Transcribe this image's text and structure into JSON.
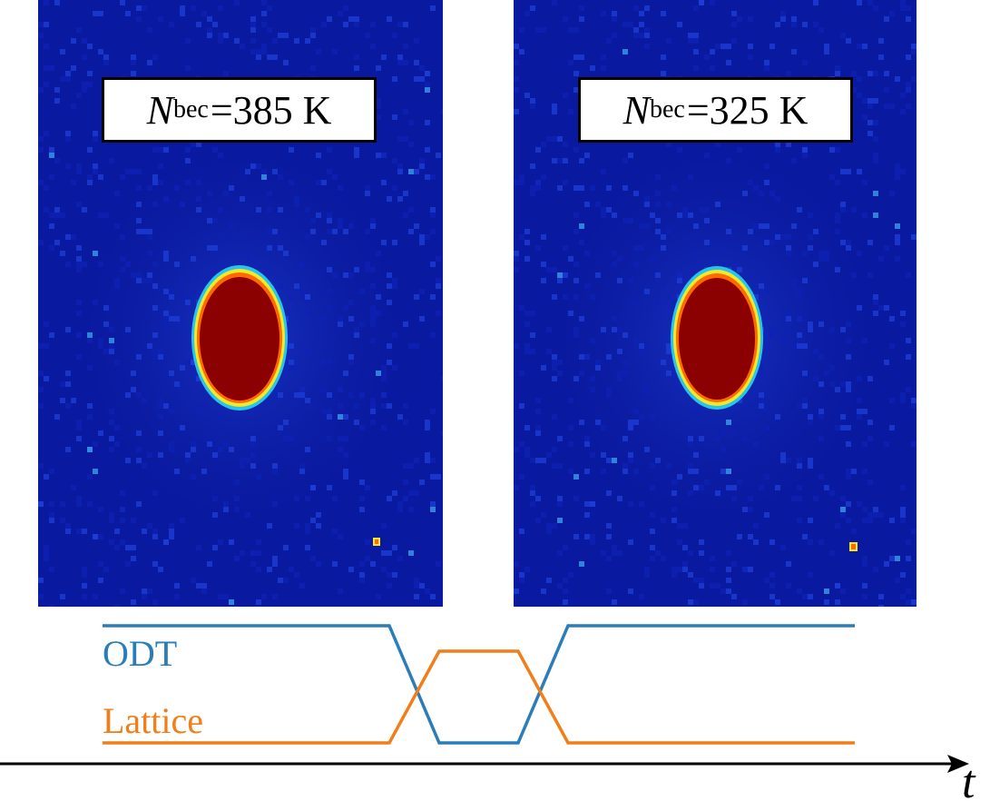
{
  "panels": [
    {
      "id": "left",
      "label_symbol": "N",
      "label_subscript": "bec",
      "label_value": "=385 K"
    },
    {
      "id": "right",
      "label_symbol": "N",
      "label_subscript": "bec",
      "label_value": "=325 K"
    }
  ],
  "colormap": {
    "background": "#0a1aa0",
    "noise": "#1f3fd8",
    "outer_ring": "#27c6e8",
    "mid_ring": "#f3e82a",
    "inner_ring": "#ff6a00",
    "core": "#8b0000"
  },
  "traces": {
    "odt_label": "ODT",
    "lattice_label": "Lattice",
    "odt_color": "#2a7db8",
    "lattice_color": "#f07f1a"
  },
  "axis": {
    "label": "t"
  }
}
